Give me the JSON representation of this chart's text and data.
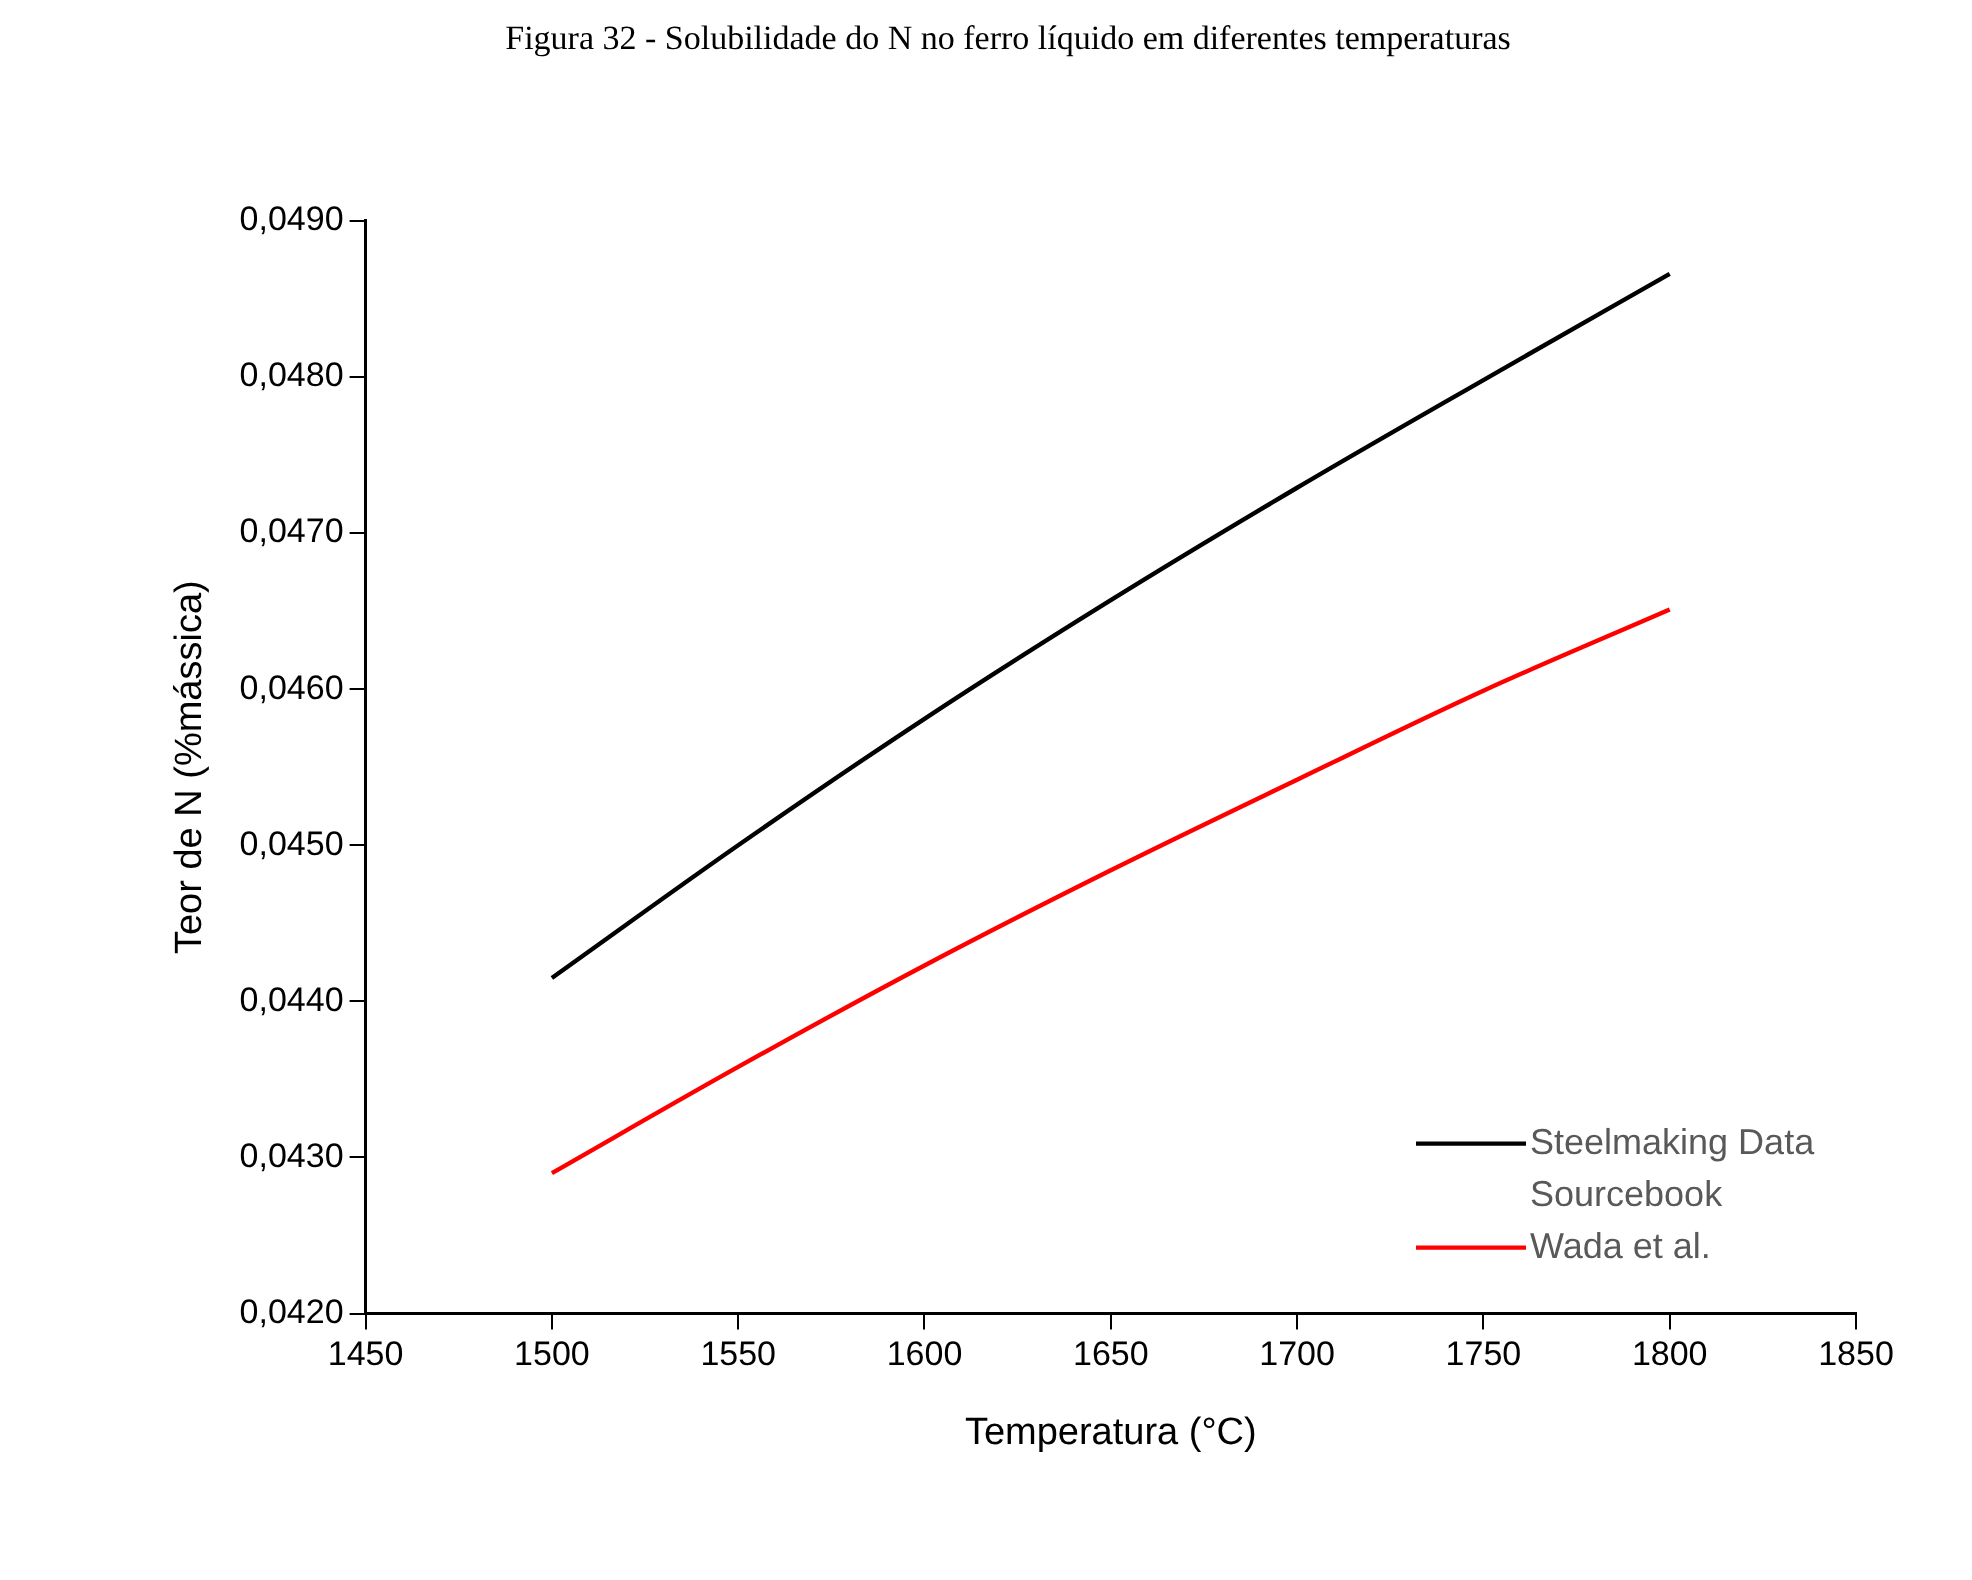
{
  "chart_data": {
    "type": "line",
    "title": "Figura 32 - Solubilidade do N no ferro líquido em diferentes temperaturas",
    "xlabel": "Temperatura (°C)",
    "ylabel": "Teor de N (%mássica)",
    "x": [
      1500,
      1550,
      1600,
      1650,
      1700,
      1750,
      1800
    ],
    "series": [
      {
        "name": "Steelmaking Data Sourcebook",
        "color": "#000000",
        "values": [
          0.04415,
          0.045,
          0.04581,
          0.04657,
          0.04729,
          0.04798,
          0.04866
        ]
      },
      {
        "name": "Wada et al.",
        "color": "#ff0000",
        "values": [
          0.0429,
          0.04358,
          0.04423,
          0.04484,
          0.04542,
          0.04599,
          0.04651
        ]
      }
    ],
    "xlim": [
      1450,
      1850
    ],
    "xticks": [
      1450,
      1500,
      1550,
      1600,
      1650,
      1700,
      1750,
      1800,
      1850
    ],
    "ylim": [
      0.042,
      0.049
    ],
    "yticks": [
      {
        "value": 0.042,
        "label": "0,0420"
      },
      {
        "value": 0.043,
        "label": "0,0430"
      },
      {
        "value": 0.044,
        "label": "0,0440"
      },
      {
        "value": 0.045,
        "label": "0,0450"
      },
      {
        "value": 0.046,
        "label": "0,0460"
      },
      {
        "value": 0.047,
        "label": "0,0470"
      },
      {
        "value": 0.048,
        "label": "0,0480"
      },
      {
        "value": 0.049,
        "label": "0,0490"
      }
    ],
    "grid": false,
    "legend": "bottom right",
    "marker": "none",
    "line_style": "solid"
  }
}
